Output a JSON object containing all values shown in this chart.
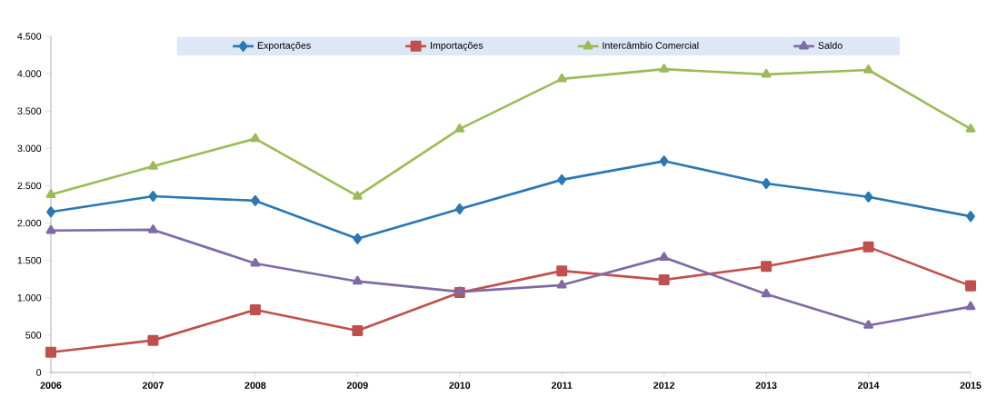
{
  "chart_data": {
    "type": "line",
    "categories": [
      "2006",
      "2007",
      "2008",
      "2009",
      "2010",
      "2011",
      "2012",
      "2013",
      "2014",
      "2015"
    ],
    "series": [
      {
        "name": "Exportações",
        "color": "#2a78b4",
        "marker": "diamond",
        "values": [
          2150,
          2360,
          2300,
          1790,
          2190,
          2580,
          2830,
          2530,
          2350,
          2090
        ]
      },
      {
        "name": "Importações",
        "color": "#c0504d",
        "marker": "square",
        "values": [
          270,
          430,
          840,
          560,
          1070,
          1360,
          1240,
          1420,
          1680,
          1160
        ]
      },
      {
        "name": "Intercâmbio Comercial",
        "color": "#9bbb59",
        "marker": "triangle",
        "values": [
          2380,
          2760,
          3130,
          2360,
          3260,
          3930,
          4060,
          3990,
          4050,
          3260
        ]
      },
      {
        "name": "Saldo",
        "color": "#7f6aa6",
        "marker": "triangle",
        "values": [
          1900,
          1910,
          1460,
          1220,
          1080,
          1170,
          1540,
          1050,
          630,
          880
        ]
      }
    ],
    "ylim": [
      0,
      4500
    ],
    "yticks": [
      0,
      500,
      {
        "value": 1000,
        "label": "1.000"
      },
      {
        "value": 1500,
        "label": "1.500"
      },
      {
        "value": 2000,
        "label": "2.000"
      },
      {
        "value": 2500,
        "label": "2.500"
      },
      {
        "value": 3000,
        "label": "3.000"
      },
      {
        "value": 3500,
        "label": "3.500"
      },
      {
        "value": 4000,
        "label": "4.000"
      },
      {
        "value": 4500,
        "label": "4.500"
      }
    ],
    "grid": false,
    "legend": "top",
    "line_style": "solid"
  }
}
